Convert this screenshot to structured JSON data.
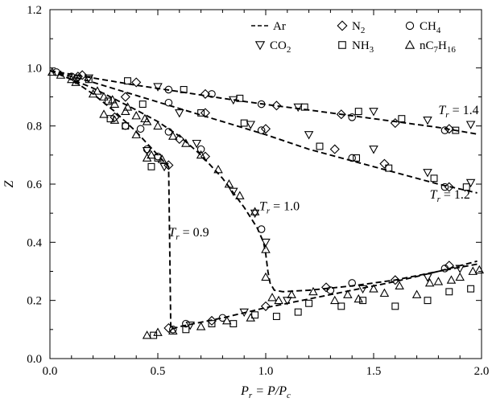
{
  "chart_data": {
    "type": "scatter",
    "xlabel": {
      "main": "P",
      "sub": "r",
      "eq": " = P/P",
      "sub2": "c"
    },
    "ylabel": "Z",
    "xlim": [
      0,
      2.0
    ],
    "ylim": [
      0,
      1.2
    ],
    "xticks": [
      "0.0",
      "0.5",
      "1.0",
      "1.5",
      "2.0"
    ],
    "yticks": [
      "0.0",
      "0.2",
      "0.4",
      "0.6",
      "0.8",
      "1.0",
      "1.2"
    ],
    "grid": false,
    "legend_position": "top",
    "legend": [
      {
        "key": "ar",
        "marker": "dash",
        "label": "Ar"
      },
      {
        "key": "n2",
        "marker": "diamond",
        "label": "N",
        "sub": "2"
      },
      {
        "key": "ch4",
        "marker": "circle",
        "label": "CH",
        "sub": "4"
      },
      {
        "key": "co2",
        "marker": "triangle-down",
        "label": "CO",
        "sub": "2"
      },
      {
        "key": "nh3",
        "marker": "square",
        "label": "NH",
        "sub": "3"
      },
      {
        "key": "c7",
        "marker": "triangle-up",
        "label": "nC",
        "sub": "7",
        "label2": "H",
        "sub2": "16"
      }
    ],
    "curve_labels": [
      {
        "prefix": "T",
        "sub": "r",
        "value": " = 1.4",
        "anchor": [
          1.8,
          0.84
        ]
      },
      {
        "prefix": "T",
        "sub": "r",
        "value": " = 1.2",
        "anchor": [
          1.76,
          0.55
        ]
      },
      {
        "prefix": "T",
        "sub": "r",
        "value": " = 1.0",
        "anchor": [
          0.97,
          0.51
        ]
      },
      {
        "prefix": "T",
        "sub": "r",
        "value": " = 0.9",
        "anchor": [
          0.55,
          0.42
        ]
      }
    ],
    "curves": [
      {
        "name": "Tr = 1.4",
        "x": [
          0.0,
          0.2,
          0.4,
          0.6,
          0.8,
          1.0,
          1.2,
          1.4,
          1.6,
          1.8,
          1.98
        ],
        "y": [
          0.99,
          0.965,
          0.94,
          0.918,
          0.895,
          0.874,
          0.855,
          0.835,
          0.815,
          0.795,
          0.772
        ]
      },
      {
        "name": "Tr = 1.2",
        "x": [
          0.0,
          0.2,
          0.4,
          0.6,
          0.8,
          1.0,
          1.2,
          1.4,
          1.6,
          1.8,
          1.98
        ],
        "y": [
          0.99,
          0.95,
          0.905,
          0.86,
          0.815,
          0.77,
          0.72,
          0.68,
          0.64,
          0.6,
          0.57
        ]
      },
      {
        "name": "Tr = 1.0",
        "x": [
          0.0,
          0.2,
          0.4,
          0.5,
          0.6,
          0.7,
          0.8,
          0.9,
          0.96,
          0.99,
          1.0,
          1.01,
          1.02,
          1.04,
          1.08,
          1.2,
          1.4,
          1.6,
          1.8,
          1.98
        ],
        "y": [
          0.99,
          0.93,
          0.855,
          0.815,
          0.765,
          0.7,
          0.62,
          0.52,
          0.45,
          0.4,
          0.36,
          0.3,
          0.26,
          0.235,
          0.23,
          0.235,
          0.25,
          0.27,
          0.3,
          0.325
        ]
      },
      {
        "name": "Tr = 0.9",
        "x": [
          0.0,
          0.1,
          0.2,
          0.3,
          0.4,
          0.45,
          0.5,
          0.55,
          0.555,
          0.56,
          0.6,
          0.8,
          1.0,
          1.2,
          1.4,
          1.6,
          1.8,
          1.98
        ],
        "y": [
          0.99,
          0.96,
          0.91,
          0.85,
          0.78,
          0.74,
          0.7,
          0.66,
          0.4,
          0.1,
          0.11,
          0.14,
          0.175,
          0.205,
          0.235,
          0.265,
          0.3,
          0.335
        ]
      }
    ],
    "series": [
      {
        "key": "ch4",
        "name": "CH4",
        "marker": "circle",
        "points": [
          [
            0.03,
            0.985
          ],
          [
            0.1,
            0.97
          ],
          [
            0.55,
            0.925
          ],
          [
            0.75,
            0.91
          ],
          [
            0.98,
            0.875
          ],
          [
            1.4,
            0.83
          ],
          [
            1.83,
            0.785
          ],
          [
            0.55,
            0.88
          ],
          [
            0.98,
            0.785
          ],
          [
            1.4,
            0.69
          ],
          [
            1.83,
            0.59
          ],
          [
            0.42,
            0.79
          ],
          [
            0.55,
            0.78
          ],
          [
            0.7,
            0.72
          ],
          [
            0.98,
            0.445
          ],
          [
            0.35,
            0.8
          ],
          [
            0.45,
            0.72
          ],
          [
            0.5,
            0.695
          ],
          [
            0.57,
            0.1
          ],
          [
            0.8,
            0.14
          ],
          [
            1.3,
            0.235
          ],
          [
            1.4,
            0.26
          ],
          [
            1.83,
            0.31
          ],
          [
            0.63,
            0.12
          ]
        ]
      },
      {
        "key": "n2",
        "name": "N2",
        "marker": "diamond",
        "points": [
          [
            0.13,
            0.97
          ],
          [
            0.4,
            0.95
          ],
          [
            0.72,
            0.91
          ],
          [
            1.05,
            0.87
          ],
          [
            1.35,
            0.84
          ],
          [
            1.6,
            0.81
          ],
          [
            1.85,
            0.79
          ],
          [
            0.12,
            0.96
          ],
          [
            0.35,
            0.9
          ],
          [
            0.72,
            0.845
          ],
          [
            1.0,
            0.79
          ],
          [
            1.32,
            0.72
          ],
          [
            1.55,
            0.67
          ],
          [
            1.85,
            0.59
          ],
          [
            0.72,
            0.695
          ],
          [
            0.6,
            0.755
          ],
          [
            0.15,
            0.975
          ],
          [
            0.3,
            0.83
          ],
          [
            0.55,
            0.665
          ],
          [
            0.55,
            0.105
          ],
          [
            0.75,
            0.13
          ],
          [
            1.0,
            0.18
          ],
          [
            1.28,
            0.245
          ],
          [
            1.6,
            0.27
          ],
          [
            1.85,
            0.32
          ]
        ]
      },
      {
        "key": "co2",
        "name": "CO2",
        "marker": "triangle-down",
        "points": [
          [
            0.18,
            0.965
          ],
          [
            0.5,
            0.935
          ],
          [
            0.85,
            0.89
          ],
          [
            1.15,
            0.865
          ],
          [
            1.5,
            0.85
          ],
          [
            1.75,
            0.82
          ],
          [
            1.95,
            0.805
          ],
          [
            0.6,
            0.845
          ],
          [
            0.93,
            0.805
          ],
          [
            1.2,
            0.77
          ],
          [
            1.5,
            0.72
          ],
          [
            1.75,
            0.64
          ],
          [
            1.95,
            0.605
          ],
          [
            0.68,
            0.74
          ],
          [
            0.85,
            0.575
          ],
          [
            0.95,
            0.5
          ],
          [
            1.0,
            0.4
          ],
          [
            0.45,
            0.715
          ],
          [
            0.53,
            0.66
          ],
          [
            0.65,
            0.115
          ],
          [
            0.9,
            0.16
          ],
          [
            1.1,
            0.2
          ],
          [
            1.45,
            0.24
          ],
          [
            1.75,
            0.28
          ],
          [
            1.9,
            0.31
          ]
        ]
      },
      {
        "key": "nh3",
        "name": "NH3",
        "marker": "square",
        "points": [
          [
            0.18,
            0.96
          ],
          [
            0.36,
            0.955
          ],
          [
            0.62,
            0.925
          ],
          [
            0.88,
            0.895
          ],
          [
            1.18,
            0.865
          ],
          [
            1.43,
            0.85
          ],
          [
            1.63,
            0.825
          ],
          [
            1.88,
            0.785
          ],
          [
            0.27,
            0.885
          ],
          [
            0.43,
            0.875
          ],
          [
            0.7,
            0.845
          ],
          [
            0.9,
            0.81
          ],
          [
            1.25,
            0.73
          ],
          [
            1.42,
            0.69
          ],
          [
            1.57,
            0.655
          ],
          [
            1.78,
            0.62
          ],
          [
            1.93,
            0.59
          ],
          [
            0.28,
            0.825
          ],
          [
            0.35,
            0.8
          ],
          [
            0.47,
            0.66
          ],
          [
            0.5,
            0.69
          ],
          [
            0.48,
            0.08
          ],
          [
            0.63,
            0.1
          ],
          [
            0.85,
            0.12
          ],
          [
            1.05,
            0.145
          ],
          [
            1.15,
            0.16
          ],
          [
            1.35,
            0.18
          ],
          [
            1.45,
            0.2
          ],
          [
            1.6,
            0.18
          ],
          [
            1.75,
            0.2
          ],
          [
            1.85,
            0.23
          ],
          [
            1.95,
            0.24
          ],
          [
            0.75,
            0.12
          ],
          [
            0.95,
            0.15
          ],
          [
            1.2,
            0.19
          ]
        ]
      },
      {
        "key": "c7",
        "name": "nC7H16",
        "marker": "triangle-up",
        "points": [
          [
            0.01,
            0.985
          ],
          [
            0.05,
            0.975
          ],
          [
            0.1,
            0.96
          ],
          [
            0.12,
            0.95
          ],
          [
            0.2,
            0.91
          ],
          [
            0.25,
            0.9
          ],
          [
            0.3,
            0.875
          ],
          [
            0.35,
            0.85
          ],
          [
            0.4,
            0.835
          ],
          [
            0.45,
            0.815
          ],
          [
            0.22,
            0.92
          ],
          [
            0.29,
            0.89
          ],
          [
            0.36,
            0.865
          ],
          [
            0.44,
            0.825
          ],
          [
            0.5,
            0.8
          ],
          [
            0.57,
            0.765
          ],
          [
            0.63,
            0.74
          ],
          [
            0.7,
            0.7
          ],
          [
            0.78,
            0.65
          ],
          [
            0.83,
            0.6
          ],
          [
            0.88,
            0.56
          ],
          [
            0.95,
            0.505
          ],
          [
            1.0,
            0.375
          ],
          [
            0.25,
            0.84
          ],
          [
            0.3,
            0.82
          ],
          [
            0.4,
            0.77
          ],
          [
            0.45,
            0.69
          ],
          [
            0.47,
            0.7
          ],
          [
            0.52,
            0.685
          ],
          [
            0.45,
            0.08
          ],
          [
            0.5,
            0.09
          ],
          [
            0.57,
            0.095
          ],
          [
            0.7,
            0.11
          ],
          [
            0.82,
            0.13
          ],
          [
            0.93,
            0.14
          ],
          [
            1.0,
            0.28
          ],
          [
            1.03,
            0.21
          ],
          [
            1.06,
            0.2
          ],
          [
            1.12,
            0.22
          ],
          [
            1.22,
            0.23
          ],
          [
            1.32,
            0.2
          ],
          [
            1.38,
            0.22
          ],
          [
            1.43,
            0.205
          ],
          [
            1.5,
            0.24
          ],
          [
            1.55,
            0.225
          ],
          [
            1.62,
            0.25
          ],
          [
            1.7,
            0.22
          ],
          [
            1.76,
            0.26
          ],
          [
            1.8,
            0.265
          ],
          [
            1.86,
            0.27
          ],
          [
            1.9,
            0.28
          ],
          [
            1.96,
            0.3
          ],
          [
            1.99,
            0.305
          ]
        ]
      }
    ]
  }
}
